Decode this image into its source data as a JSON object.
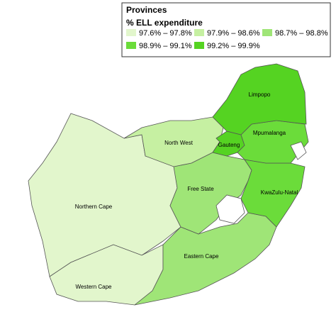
{
  "legend": {
    "title": "Provinces",
    "subtitle": "% ELL expenditure",
    "items": [
      {
        "label": "97.6% – 97.8%",
        "color": "#e2f6cc"
      },
      {
        "label": "97.9% – 98.6%",
        "color": "#c6f0a2"
      },
      {
        "label": "98.7% – 98.8%",
        "color": "#9fe577"
      },
      {
        "label": "98.9% – 99.1%",
        "color": "#6bdc3a"
      },
      {
        "label": "99.2% – 99.9%",
        "color": "#55d322"
      }
    ]
  },
  "provinces": [
    {
      "name": "Northern Cape",
      "color": "#e2f6cc"
    },
    {
      "name": "Western Cape",
      "color": "#e2f6cc"
    },
    {
      "name": "Eastern Cape",
      "color": "#9fe577"
    },
    {
      "name": "Free State",
      "color": "#9fe577"
    },
    {
      "name": "KwaZulu-Natal",
      "color": "#6bdc3a"
    },
    {
      "name": "North West",
      "color": "#c6f0a2"
    },
    {
      "name": "Gauteng",
      "color": "#55d322"
    },
    {
      "name": "Mpumalanga",
      "color": "#6bdc3a"
    },
    {
      "name": "Limpopo",
      "color": "#55d322"
    }
  ]
}
